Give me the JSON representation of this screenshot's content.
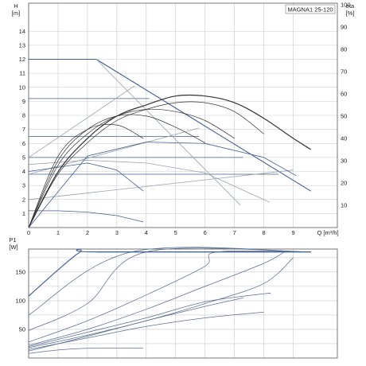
{
  "title": "MAGNA1 25-120",
  "colors": {
    "curve": "#3f5f93",
    "efficiency": "#333333",
    "helper": "#9aa3b0",
    "grid": "#c9c9c9"
  },
  "chart_data": [
    {
      "type": "line",
      "id": "head",
      "title": "MAGNA1 25-120",
      "ylabel_top": "H",
      "ylabel_unit": "[m]",
      "xlabel": "Q [m³/h]",
      "xlim": [
        0,
        10.5
      ],
      "ylim": [
        0,
        16
      ],
      "x_ticks": [
        "0",
        "1",
        "2",
        "3",
        "4",
        "5",
        "6",
        "7",
        "8",
        "9"
      ],
      "y_ticks": [
        "1",
        "2",
        "3",
        "4",
        "5",
        "6",
        "7",
        "8",
        "9",
        "10",
        "11",
        "12",
        "13",
        "14"
      ],
      "grid": true,
      "series": [
        {
          "name": "",
          "kind": "max_curve",
          "points": [
            [
              0,
              12
            ],
            [
              2.3,
              12
            ],
            [
              9.6,
              2.6
            ]
          ]
        },
        {
          "name": "",
          "kind": "pressure_line",
          "points": [
            [
              0,
              9.2
            ],
            [
              4.1,
              9.2
            ]
          ]
        },
        {
          "name": "",
          "kind": "pressure_line",
          "points": [
            [
              0,
              6.5
            ],
            [
              5.8,
              6.5
            ]
          ]
        },
        {
          "name": "",
          "kind": "pressure_line",
          "points": [
            [
              0,
              5.0
            ],
            [
              7.3,
              5.0
            ]
          ]
        },
        {
          "name": "",
          "kind": "pressure_line",
          "points": [
            [
              0,
              3.8
            ],
            [
              8.5,
              3.8
            ]
          ]
        },
        {
          "name": "",
          "kind": "curve",
          "points": [
            [
              0,
              1.2
            ],
            [
              1,
              1.2
            ],
            [
              2,
              1.1
            ],
            [
              3,
              0.85
            ],
            [
              3.9,
              0.4
            ]
          ]
        },
        {
          "name": "",
          "kind": "curve",
          "points": [
            [
              0,
              2.0
            ],
            [
              9.0,
              4.1
            ]
          ]
        },
        {
          "name": "",
          "kind": "curve",
          "points": [
            [
              0,
              4.5
            ],
            [
              2,
              4.8
            ],
            [
              4,
              4.6
            ],
            [
              6,
              3.9
            ],
            [
              8.2,
              1.8
            ]
          ]
        },
        {
          "name": "",
          "kind": "curve",
          "points": [
            [
              0,
              5.0
            ],
            [
              3.6,
              10.1
            ]
          ]
        },
        {
          "name": "",
          "kind": "curve",
          "points": [
            [
              0,
              3.8
            ],
            [
              5.8,
              7.1
            ]
          ]
        },
        {
          "name": "",
          "kind": "curve",
          "points": [
            [
              0,
              4.0
            ],
            [
              2,
              4.6
            ],
            [
              3,
              4.1
            ],
            [
              3.9,
              2.6
            ]
          ]
        },
        {
          "name": "",
          "kind": "curve",
          "points": [
            [
              0,
              0
            ],
            [
              2,
              5.1
            ],
            [
              4,
              6.1
            ],
            [
              6,
              6.0
            ],
            [
              8,
              5.0
            ],
            [
              9.1,
              3.7
            ]
          ]
        },
        {
          "name": "",
          "kind": "curve",
          "points": [
            [
              2.3,
              12
            ],
            [
              7.2,
              1.6
            ]
          ]
        }
      ],
      "efficiency": {
        "label_top": "eta",
        "label_unit": "[%]",
        "ylim": [
          0,
          100
        ],
        "y_ticks": [
          "10",
          "20",
          "30",
          "40",
          "50",
          "60",
          "70",
          "80",
          "90",
          "100"
        ],
        "series": [
          {
            "name": "",
            "points": [
              [
                0,
                0
              ],
              [
                1,
                25
              ],
              [
                2,
                40
              ],
              [
                3,
                50
              ],
              [
                4,
                55
              ],
              [
                5,
                59
              ],
              [
                6,
                59
              ],
              [
                7,
                56
              ],
              [
                8,
                49
              ],
              [
                9,
                40
              ],
              [
                9.6,
                35
              ]
            ]
          },
          {
            "name": "",
            "points": [
              [
                0,
                0
              ],
              [
                1,
                24
              ],
              [
                2,
                38
              ],
              [
                3,
                48
              ],
              [
                4,
                53
              ],
              [
                5,
                56
              ],
              [
                6,
                56
              ],
              [
                7,
                52
              ],
              [
                8,
                42
              ]
            ]
          },
          {
            "name": "",
            "points": [
              [
                0,
                0
              ],
              [
                1,
                28
              ],
              [
                2,
                42
              ],
              [
                3,
                50
              ],
              [
                4,
                53
              ],
              [
                5,
                52
              ],
              [
                6,
                48
              ],
              [
                7,
                40
              ]
            ]
          },
          {
            "name": "",
            "points": [
              [
                0,
                0
              ],
              [
                1,
                30
              ],
              [
                2,
                44
              ],
              [
                3,
                50
              ],
              [
                4,
                50
              ],
              [
                5,
                45
              ],
              [
                6,
                38
              ]
            ]
          },
          {
            "name": "",
            "points": [
              [
                0,
                0
              ],
              [
                1,
                32
              ],
              [
                2,
                44
              ],
              [
                3,
                46
              ],
              [
                3.9,
                40
              ]
            ]
          }
        ]
      }
    },
    {
      "type": "line",
      "id": "power",
      "ylabel_top": "P1",
      "ylabel_unit": "[W]",
      "xlim": [
        0,
        10.5
      ],
      "ylim": [
        0,
        190
      ],
      "y_ticks": [
        "50",
        "100",
        "150"
      ],
      "grid": true,
      "series": [
        {
          "name": "",
          "points": [
            [
              0,
              108
            ],
            [
              1.7,
              183
            ],
            [
              2.3,
              185
            ],
            [
              9.6,
              185
            ]
          ]
        },
        {
          "name": "",
          "points": [
            [
              0,
              75
            ],
            [
              3.5,
              185
            ],
            [
              9.6,
              185
            ]
          ]
        },
        {
          "name": "",
          "points": [
            [
              0,
              48
            ],
            [
              2,
              95
            ],
            [
              4,
              185
            ],
            [
              9.6,
              185
            ]
          ]
        },
        {
          "name": "",
          "points": [
            [
              0,
              28
            ],
            [
              2,
              65
            ],
            [
              4,
              110
            ],
            [
              6,
              160
            ],
            [
              6.4,
              185
            ],
            [
              9.6,
              185
            ]
          ]
        },
        {
          "name": "",
          "points": [
            [
              0,
              22
            ],
            [
              2,
              50
            ],
            [
              4,
              85
            ],
            [
              6,
              125
            ],
            [
              8,
              165
            ],
            [
              8.7,
              185
            ]
          ]
        },
        {
          "name": "",
          "points": [
            [
              0,
              18
            ],
            [
              2,
              40
            ],
            [
              4,
              65
            ],
            [
              6,
              95
            ],
            [
              8,
              130
            ],
            [
              9,
              175
            ]
          ]
        },
        {
          "name": "",
          "points": [
            [
              0,
              12
            ],
            [
              2,
              38
            ],
            [
              4,
              65
            ],
            [
              6,
              90
            ],
            [
              7.3,
              105
            ]
          ]
        },
        {
          "name": "",
          "points": [
            [
              0,
              15
            ],
            [
              2,
              35
            ],
            [
              4,
              55
            ],
            [
              6,
              70
            ],
            [
              8,
              80
            ]
          ]
        },
        {
          "name": "",
          "points": [
            [
              0,
              20
            ],
            [
              2,
              45
            ],
            [
              4,
              70
            ],
            [
              6,
              98
            ],
            [
              8,
              112
            ],
            [
              8.2,
              112
            ]
          ]
        },
        {
          "name": "",
          "points": [
            [
              0,
              8
            ],
            [
              1,
              14
            ],
            [
              2,
              17
            ],
            [
              3.9,
              17
            ]
          ]
        }
      ]
    }
  ]
}
